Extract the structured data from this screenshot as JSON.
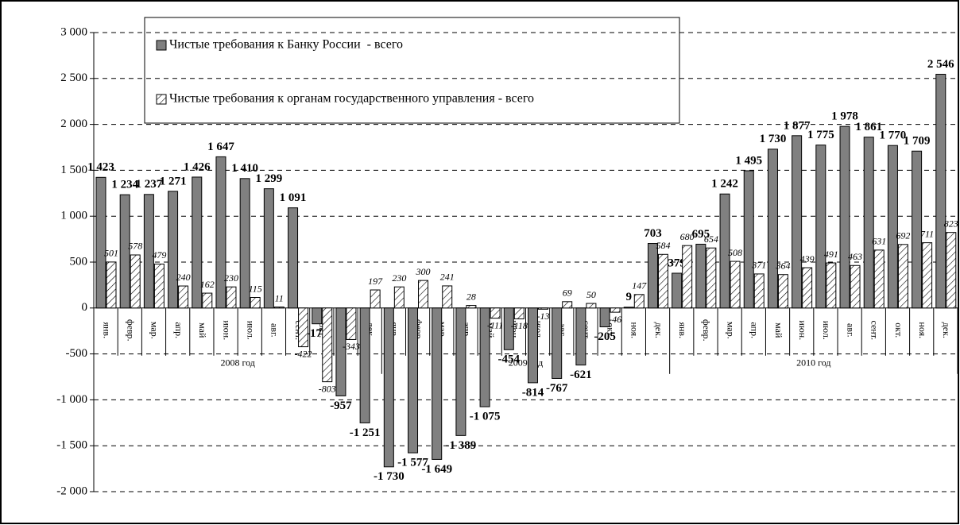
{
  "chart_data": {
    "type": "bar",
    "categories": [
      "янв.",
      "февр.",
      "мар.",
      "апр.",
      "май",
      "июн.",
      "июл.",
      "авг.",
      "сент.",
      "окт.",
      "ноя.",
      "дек.",
      "янв.",
      "февр.",
      "мар.",
      "апр.",
      "май",
      "июн.",
      "июл.",
      "авг.",
      "сент.",
      "окт.",
      "ноя.",
      "дек.",
      "янв.",
      "февр.",
      "мар.",
      "апр.",
      "май",
      "июн.",
      "июл.",
      "авг.",
      "сент.",
      "окт.",
      "ноя.",
      "дек."
    ],
    "groups": [
      "2008 год",
      "2009 год",
      "2010 год"
    ],
    "series": [
      {
        "name": "Чистые требования к Банку России  - всего",
        "color": "#808080",
        "values": [
          1423,
          1234,
          1237,
          1271,
          1426,
          1647,
          1410,
          1299,
          1091,
          -172,
          -957,
          -1251,
          -1730,
          -1577,
          -1649,
          -1389,
          -1075,
          -454,
          -814,
          -767,
          -621,
          -205,
          9,
          703,
          379,
          695,
          1242,
          1495,
          1730,
          1877,
          1775,
          1978,
          1861,
          1770,
          1709,
          2546
        ],
        "value_labels": [
          "1 423",
          "1 234",
          "1 237",
          "1 271",
          "1 426",
          "1 647",
          "1 410",
          "1 299",
          "1 091",
          "-172",
          "-957",
          "-1 251",
          "-1 730",
          "-1 577",
          "-1 649",
          "-1 389",
          "-1 075",
          "-454",
          "-814",
          "-767",
          "-621",
          "-205",
          "9",
          "703",
          "379",
          "695",
          "1 242",
          "1 495",
          "1 730",
          "1 877",
          "1 775",
          "1 978",
          "1 861",
          "1 770",
          "1 709",
          "2 546"
        ]
      },
      {
        "name": "Чистые требования к органам государственного управления - всего",
        "color": "#ffffff",
        "hatch": true,
        "values": [
          501,
          578,
          479,
          240,
          162,
          230,
          115,
          11,
          -422,
          -803,
          -343,
          197,
          230,
          300,
          241,
          28,
          -111,
          -118,
          -13,
          69,
          50,
          -46,
          147,
          584,
          680,
          654,
          508,
          371,
          364,
          439,
          491,
          463,
          631,
          692,
          711,
          823
        ]
      }
    ],
    "ylim": [
      -2000,
      3000
    ],
    "yticks": [
      {
        "value": -2000,
        "label": "-2 000"
      },
      {
        "value": -1500,
        "label": "-1 500"
      },
      {
        "value": -1000,
        "label": "-1 000"
      },
      -500,
      0,
      500,
      {
        "value": 1000,
        "label": "1 000"
      },
      {
        "value": 1500,
        "label": "1 500"
      },
      {
        "value": 2000,
        "label": "2 000"
      },
      {
        "value": 2500,
        "label": "2 500"
      },
      {
        "value": 3000,
        "label": "3 000"
      }
    ],
    "grid": true
  }
}
